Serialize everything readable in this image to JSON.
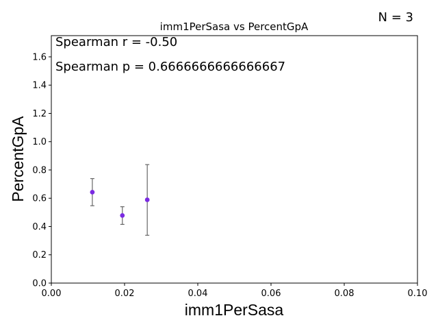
{
  "chart_data": {
    "type": "scatter",
    "title": "imm1PerSasa vs PercentGpA",
    "xlabel": "imm1PerSasa",
    "ylabel": "PercentGpA",
    "xlim": [
      0.0,
      0.1
    ],
    "ylim": [
      0.0,
      1.75
    ],
    "xticks": [
      "0.00",
      "0.02",
      "0.04",
      "0.06",
      "0.08",
      "0.10"
    ],
    "yticks": [
      "0.0",
      "0.2",
      "0.4",
      "0.6",
      "0.8",
      "1.0",
      "1.2",
      "1.4",
      "1.6"
    ],
    "points": [
      {
        "x": 0.0112,
        "y": 0.643,
        "err_low": 0.547,
        "err_high": 0.739
      },
      {
        "x": 0.0194,
        "y": 0.478,
        "err_low": 0.415,
        "err_high": 0.54
      },
      {
        "x": 0.0262,
        "y": 0.589,
        "err_low": 0.338,
        "err_high": 0.838
      }
    ],
    "point_color": "#7b2be2",
    "errorbar_color": "#666666",
    "annotations": {
      "spearman_r": "Spearman r = -0.50",
      "spearman_p": "Spearman p = 0.6666666666666667",
      "n": "N = 3"
    }
  }
}
